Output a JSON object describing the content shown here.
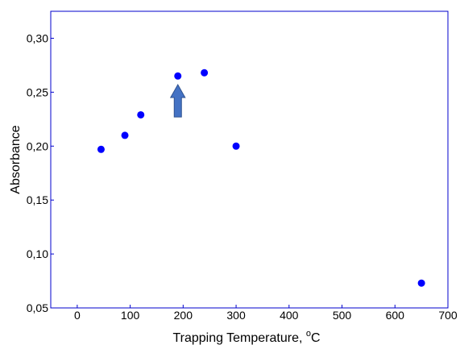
{
  "chart_data": {
    "type": "scatter",
    "xlabel": "Trapping Temperature, ",
    "xlabel_unit_degree": "o",
    "xlabel_unit": "C",
    "ylabel": "Absorbance",
    "xlim": [
      -50,
      700
    ],
    "ylim": [
      0.05,
      0.325
    ],
    "x_ticks": [
      0,
      100,
      200,
      300,
      400,
      500,
      600,
      700
    ],
    "x_tick_labels": [
      "0",
      "100",
      "200",
      "300",
      "400",
      "500",
      "600",
      "700"
    ],
    "y_ticks": [
      0.05,
      0.1,
      0.15,
      0.2,
      0.25,
      0.3
    ],
    "y_tick_labels": [
      "0,05",
      "0,10",
      "0,15",
      "0,20",
      "0,25",
      "0,30"
    ],
    "grid": false,
    "legend": "none",
    "colors": {
      "marker": "#0000ff",
      "frame": "#0000cc",
      "arrow_fill": "#4472c4",
      "arrow_stroke": "#2f528f"
    },
    "points": [
      {
        "x": 45,
        "y": 0.197
      },
      {
        "x": 90,
        "y": 0.21
      },
      {
        "x": 120,
        "y": 0.229
      },
      {
        "x": 190,
        "y": 0.265
      },
      {
        "x": 240,
        "y": 0.268
      },
      {
        "x": 300,
        "y": 0.2
      },
      {
        "x": 650,
        "y": 0.073
      }
    ],
    "annotation": {
      "type": "arrow-up",
      "x": 190,
      "y_base": 0.227,
      "y_tip": 0.257
    }
  }
}
